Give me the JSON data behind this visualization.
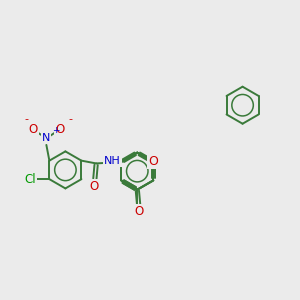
{
  "background_color": "#ebebeb",
  "bond_color": "#3a7a3a",
  "atom_colors": {
    "N": "#0000cc",
    "O": "#cc0000",
    "Cl": "#009900",
    "C": "#3a7a3a"
  },
  "figsize": [
    3.0,
    3.0
  ],
  "dpi": 100
}
